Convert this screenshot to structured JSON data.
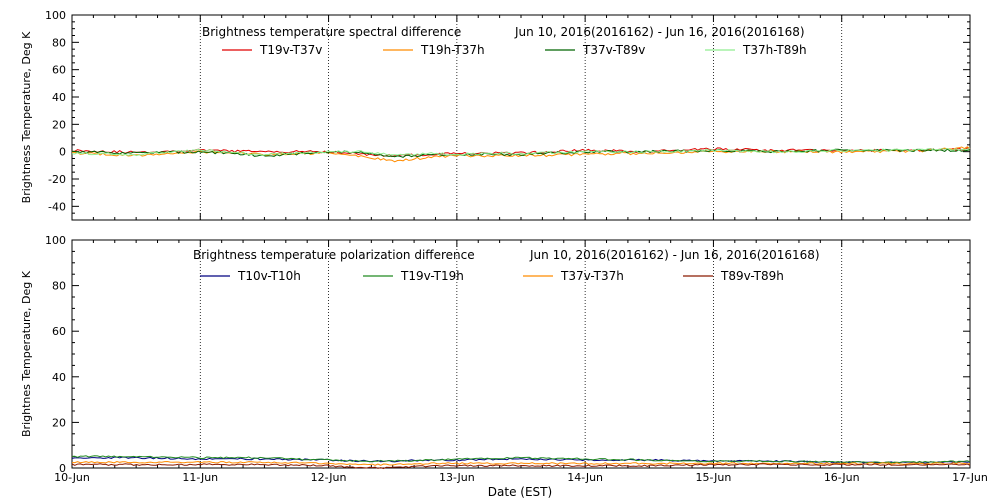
{
  "x_axis": {
    "label": "Date (EST)",
    "ticks": [
      "10-Jun",
      "11-Jun",
      "12-Jun",
      "13-Jun",
      "14-Jun",
      "15-Jun",
      "16-Jun",
      "17-Jun"
    ],
    "range": [
      0,
      7
    ]
  },
  "chart_data": [
    {
      "type": "line",
      "title": "Brightness temperature spectral difference",
      "subtitle": "Jun 10, 2016(2016162) - Jun 16, 2016(2016168)",
      "xlabel": "",
      "ylabel": "Brightness Temperature, Deg K",
      "ylim": [
        -50,
        100
      ],
      "yticks": [
        "-40",
        "-20",
        "0",
        "20",
        "40",
        "60",
        "80",
        "100"
      ],
      "x_unit": "days since 10-Jun",
      "grid": "vertical dotted",
      "legend_position": "top",
      "x": [
        0,
        0.5,
        1,
        1.5,
        2,
        2.3,
        2.5,
        2.8,
        3,
        3.5,
        4,
        4.5,
        5,
        5.5,
        6,
        6.5,
        7
      ],
      "series": [
        {
          "name": "T19v-T37v",
          "color": "#e00000",
          "values": [
            1,
            -0.5,
            1,
            0,
            0,
            -2,
            -3,
            -2,
            -1,
            -1,
            1,
            0,
            2,
            1,
            1,
            1,
            2
          ]
        },
        {
          "name": "T19h-T37h",
          "color": "#ff8c00",
          "values": [
            -1,
            -3,
            0,
            -2,
            -1,
            -4,
            -7,
            -4,
            -3,
            -3,
            -2,
            -1,
            0,
            0,
            0,
            0,
            3
          ]
        },
        {
          "name": "T37v-T89v",
          "color": "#006400",
          "values": [
            0,
            -1,
            0,
            -3,
            0,
            -1,
            -4,
            -2,
            -2,
            -2,
            0,
            0,
            1,
            0,
            1,
            1,
            1
          ]
        },
        {
          "name": "T37h-T89h",
          "color": "#90ee90",
          "values": [
            -1,
            -2,
            1,
            -2,
            0,
            0,
            -3,
            -1,
            -2,
            -1,
            0,
            0,
            1,
            0,
            1,
            1,
            2
          ]
        }
      ]
    },
    {
      "type": "line",
      "title": "Brightness temperature polarization difference",
      "subtitle": "Jun 10, 2016(2016162) - Jun 16, 2016(2016168)",
      "xlabel": "Date (EST)",
      "ylabel": "Brightnes Temperature, Deg K",
      "ylim": [
        0,
        100
      ],
      "yticks": [
        "0",
        "20",
        "40",
        "60",
        "80",
        "100"
      ],
      "x_unit": "days since 10-Jun",
      "grid": "vertical dotted",
      "legend_position": "top",
      "x": [
        0,
        0.5,
        1,
        1.5,
        2,
        2.3,
        2.5,
        2.8,
        3,
        3.5,
        4,
        4.5,
        5,
        5.5,
        6,
        6.5,
        7
      ],
      "series": [
        {
          "name": "T10v-T10h",
          "color": "#000080",
          "values": [
            4.5,
            4.5,
            4,
            4,
            3.5,
            3,
            3,
            3.5,
            3.5,
            4,
            3.5,
            3.5,
            3,
            3,
            2.5,
            2.5,
            2.5
          ]
        },
        {
          "name": "T19v-T19h",
          "color": "#228b22",
          "values": [
            5,
            5,
            4.5,
            4.5,
            3.5,
            3,
            3,
            3.5,
            4,
            4.5,
            4,
            3.5,
            3,
            3,
            2.5,
            2.5,
            3
          ]
        },
        {
          "name": "T37v-T37h",
          "color": "#ff8c00",
          "values": [
            2.5,
            2.5,
            2.5,
            2.5,
            2,
            1.5,
            1.5,
            2,
            2,
            2,
            2,
            2,
            2,
            2,
            2,
            2,
            2
          ]
        },
        {
          "name": "T89v-T89h",
          "color": "#8b1a00",
          "values": [
            1.5,
            1.5,
            1.5,
            1.5,
            1,
            0,
            0,
            1,
            1,
            1,
            1,
            1,
            1.5,
            1.5,
            1.5,
            1.5,
            1.5
          ]
        }
      ]
    }
  ]
}
